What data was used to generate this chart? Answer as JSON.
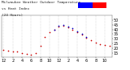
{
  "title": "Milwaukee Weather Outdoor Temperature",
  "subtitle": "vs Heat Index",
  "subtitle2": "(24 Hours)",
  "bg_color": "#ffffff",
  "plot_bg": "#ffffff",
  "line_color_temp": "#cc0000",
  "line_color_heat": "#0000cc",
  "legend_bar_blue": "#0000ff",
  "legend_bar_red": "#ff0000",
  "ylim": [
    10,
    55
  ],
  "ytick_vals": [
    15,
    20,
    25,
    30,
    35,
    40,
    45,
    50
  ],
  "ytick_labels": [
    "15",
    "20",
    "25",
    "30",
    "35",
    "40",
    "45",
    "50"
  ],
  "temp_data": [
    [
      0,
      18
    ],
    [
      1,
      17
    ],
    [
      2,
      16
    ],
    [
      3,
      16
    ],
    [
      4,
      15
    ],
    [
      5,
      14
    ],
    [
      6,
      13
    ],
    [
      7,
      15
    ],
    [
      8,
      22
    ],
    [
      9,
      32
    ],
    [
      10,
      37
    ],
    [
      11,
      40
    ],
    [
      12,
      43
    ],
    [
      13,
      44
    ],
    [
      14,
      42
    ],
    [
      15,
      40
    ],
    [
      16,
      37
    ],
    [
      17,
      34
    ],
    [
      18,
      31
    ],
    [
      19,
      28
    ],
    [
      20,
      26
    ],
    [
      21,
      24
    ],
    [
      22,
      23
    ],
    [
      23,
      22
    ]
  ],
  "heat_data": [
    [
      11,
      40
    ],
    [
      12,
      44
    ],
    [
      13,
      45
    ],
    [
      14,
      43
    ],
    [
      15,
      41
    ],
    [
      16,
      38
    ],
    [
      17,
      35
    ],
    [
      18,
      32
    ]
  ],
  "xlim": [
    -0.5,
    23.5
  ],
  "grid_positions": [
    0,
    2,
    4,
    6,
    8,
    10,
    12,
    14,
    16,
    18,
    20,
    22
  ],
  "xtick_positions": [
    0,
    2,
    4,
    6,
    8,
    10,
    12,
    14,
    16,
    18,
    20,
    22
  ],
  "xtick_labels": [
    "12",
    "2",
    "4",
    "6",
    "8",
    "10",
    "12",
    "2",
    "4",
    "6",
    "8",
    "10"
  ],
  "tick_fontsize": 3.5,
  "dot_size": 1.5
}
